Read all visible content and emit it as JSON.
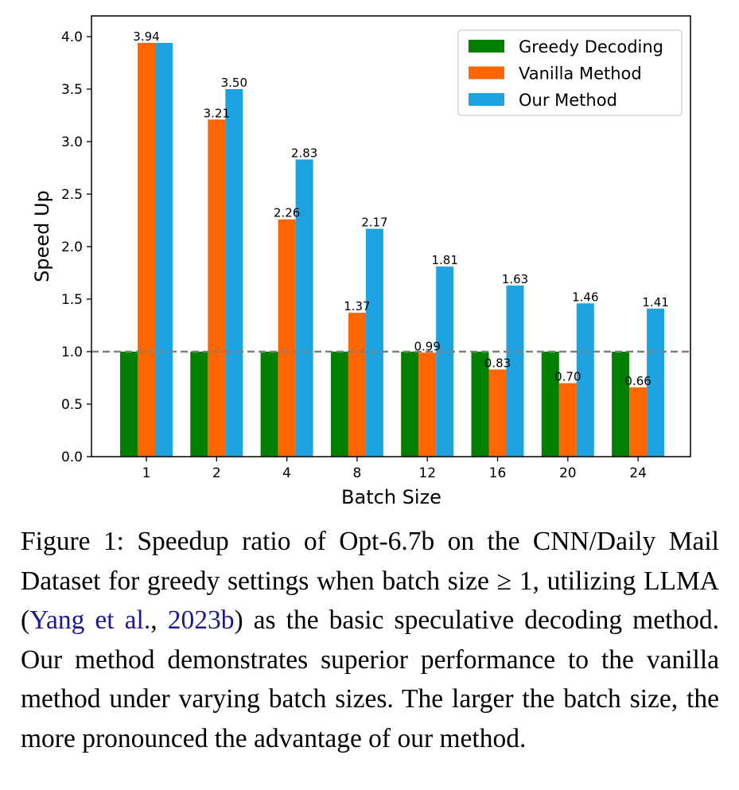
{
  "chart_data": {
    "type": "bar",
    "categories": [
      "1",
      "2",
      "4",
      "8",
      "12",
      "16",
      "20",
      "24"
    ],
    "series": [
      {
        "name": "Greedy Decoding",
        "color": "#008000",
        "values": [
          1.0,
          1.0,
          1.0,
          1.0,
          1.0,
          1.0,
          1.0,
          1.0
        ],
        "labels": [
          "",
          "",
          "",
          "",
          "",
          "",
          "",
          ""
        ]
      },
      {
        "name": "Vanilla Method",
        "color": "#ff6600",
        "values": [
          3.94,
          3.21,
          2.26,
          1.37,
          0.99,
          0.83,
          0.7,
          0.66
        ],
        "labels": [
          "3.94",
          "3.21",
          "2.26",
          "1.37",
          "0.99",
          "0.83",
          "0.70",
          "0.66"
        ]
      },
      {
        "name": "Our Method",
        "color": "#1fa3e0",
        "values": [
          3.94,
          3.5,
          2.83,
          2.17,
          1.81,
          1.63,
          1.46,
          1.41
        ],
        "labels": [
          "",
          "3.50",
          "2.83",
          "2.17",
          "1.81",
          "1.63",
          "1.46",
          "1.41"
        ]
      }
    ],
    "xlabel": "Batch Size",
    "ylabel": "Speed Up",
    "ylim": [
      0,
      4.0
    ],
    "yticks": [
      "0.0",
      "0.5",
      "1.0",
      "1.5",
      "2.0",
      "2.5",
      "3.0",
      "3.5",
      "4.0"
    ],
    "reference_line": {
      "y": 1.0,
      "style": "dashed",
      "color": "#808080"
    },
    "legend_position": "top-right",
    "grid": false
  },
  "caption": {
    "figure_label": "Figure 1:",
    "text_before_cite": "Speedup ratio of Opt-6.7b on the CNN/Daily Mail Dataset for greedy settings when batch size ≥ 1, utilizing LLMA (",
    "cite_authors": "Yang et al.",
    "cite_sep": ", ",
    "cite_year": "2023b",
    "text_after_cite": ") as the basic spec­ulative decoding method. Our method demonstrates superior performance to the vanilla method under vary­ing batch sizes. The larger the batch size, the more pronounced the advantage of our method."
  }
}
